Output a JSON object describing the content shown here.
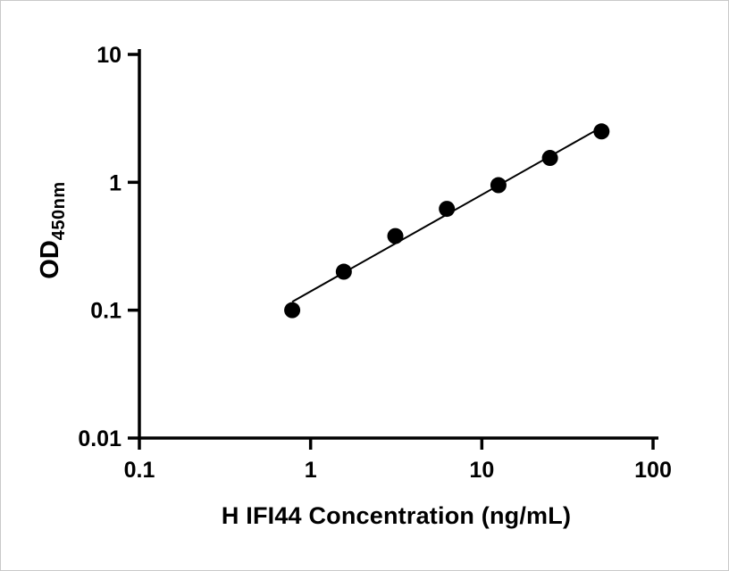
{
  "chart_data": {
    "type": "scatter",
    "title": "",
    "xlabel": "H IFI44 Concentration (ng/mL)",
    "ylabel_main": "OD",
    "ylabel_sub": "450nm",
    "x_scale": "log",
    "y_scale": "log",
    "xlim": [
      0.1,
      100
    ],
    "ylim": [
      0.01,
      10
    ],
    "x_ticks": [
      0.1,
      1,
      10,
      100
    ],
    "x_tick_labels": [
      "0.1",
      "1",
      "10",
      "100"
    ],
    "y_ticks": [
      0.01,
      0.1,
      1,
      10
    ],
    "y_tick_labels": [
      "0.01",
      "0.1",
      "1",
      "10"
    ],
    "grid": false,
    "legend": "none",
    "series": [
      {
        "x": [
          0.781,
          1.563,
          3.125,
          6.25,
          12.5,
          25,
          50
        ],
        "y": [
          0.1,
          0.2,
          0.38,
          0.62,
          0.95,
          1.55,
          2.5
        ],
        "marker": "circle",
        "marker_radius": 9,
        "fit": "linear-loglog"
      }
    ],
    "colors": {
      "axis": "#000000",
      "marker": "#000000",
      "line": "#000000",
      "background": "#ffffff"
    }
  }
}
